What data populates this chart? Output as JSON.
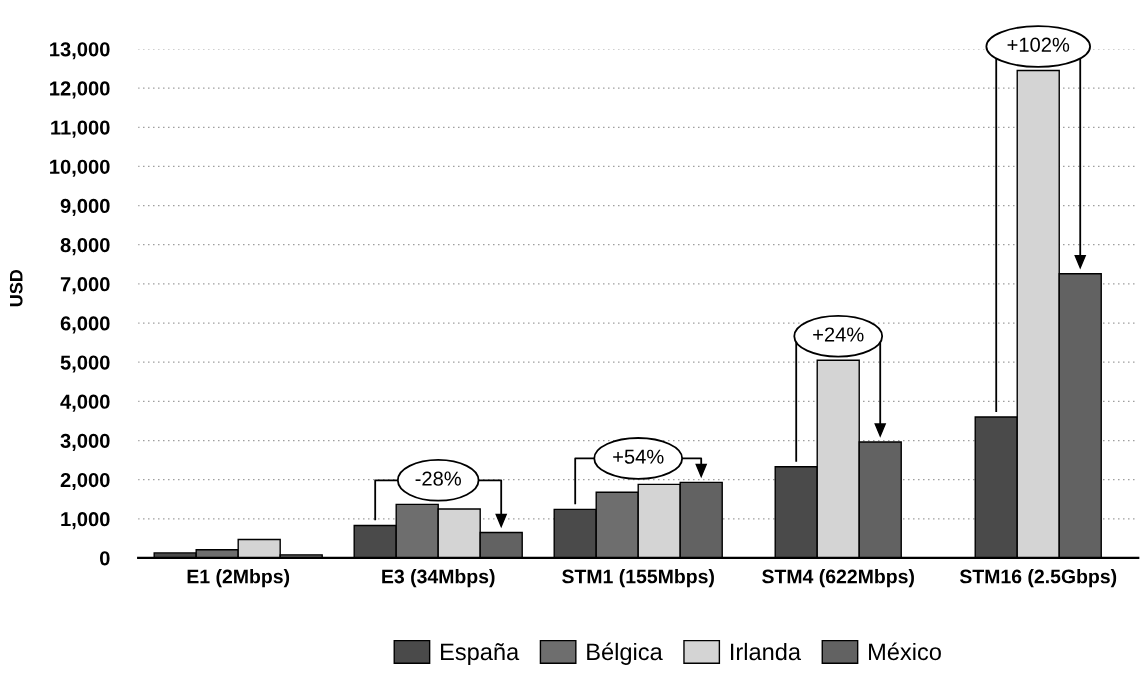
{
  "chart_data": {
    "type": "bar",
    "ylabel": "USD",
    "categories": [
      "E1 (2Mbps)",
      "E3 (34Mbps)",
      "STM1 (155Mbps)",
      "STM4 (622Mbps)",
      "STM16 (2.5Gbps)"
    ],
    "series": [
      {
        "name": "España",
        "color": "#4a4a4a",
        "values": [
          130,
          830,
          1240,
          2330,
          3600
        ]
      },
      {
        "name": "Bélgica",
        "color": "#6e6e6e",
        "values": [
          210,
          1370,
          1680,
          null,
          null
        ]
      },
      {
        "name": "Irlanda",
        "color": "#d4d4d4",
        "values": [
          470,
          1250,
          1880,
          5050,
          12450
        ]
      },
      {
        "name": "México",
        "color": "#626262",
        "values": [
          80,
          650,
          1930,
          2960,
          7260
        ]
      }
    ],
    "ylim": [
      0,
      13000
    ],
    "yticks": [
      0,
      {
        "value": 1000,
        "label": "1,000"
      },
      {
        "value": 2000,
        "label": "2,000"
      },
      {
        "value": 3000,
        "label": "3,000"
      },
      {
        "value": 4000,
        "label": "4,000"
      },
      {
        "value": 5000,
        "label": "5,000"
      },
      {
        "value": 6000,
        "label": "6,000"
      },
      {
        "value": 7000,
        "label": "7,000"
      },
      {
        "value": 8000,
        "label": "8,000"
      },
      {
        "value": 9000,
        "label": "9,000"
      },
      {
        "value": 10000,
        "label": "10,000"
      },
      {
        "value": 11000,
        "label": "11,000"
      },
      {
        "value": 12000,
        "label": "12,000"
      },
      {
        "value": 13000,
        "label": "13,000"
      }
    ],
    "grid": "y",
    "legend": "bottom",
    "annotations": [
      "-28%",
      "+54%",
      "+24%",
      "+102%"
    ]
  }
}
